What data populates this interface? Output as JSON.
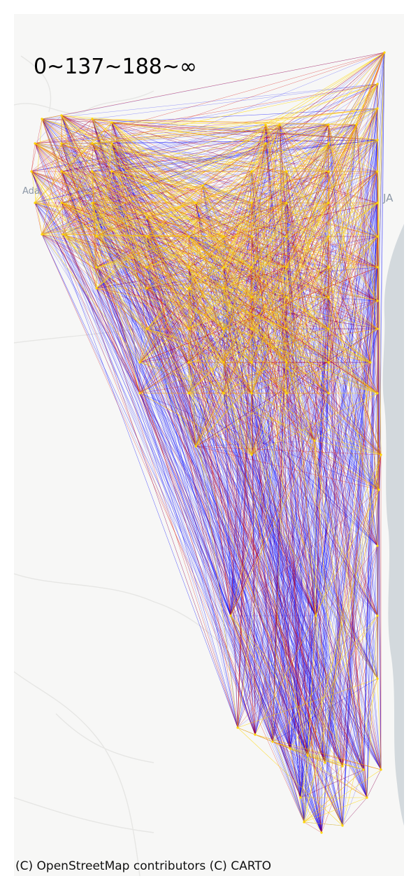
{
  "title": "0~137~188~∞",
  "attribution": "(C) OpenStreetMap contributors (C) CARTO",
  "basemap": {
    "land_color": "#f7f7f6",
    "water_color": "#d3d9dd",
    "road_color": "#e6e6e4",
    "place_labels": [
      "Ada",
      "JA"
    ]
  },
  "flow_classes": [
    {
      "range": "0~137",
      "color": "#0000ff"
    },
    {
      "range": "137~188",
      "color": "#d40000"
    },
    {
      "range": "188~∞",
      "color": "#ffd700"
    }
  ]
}
